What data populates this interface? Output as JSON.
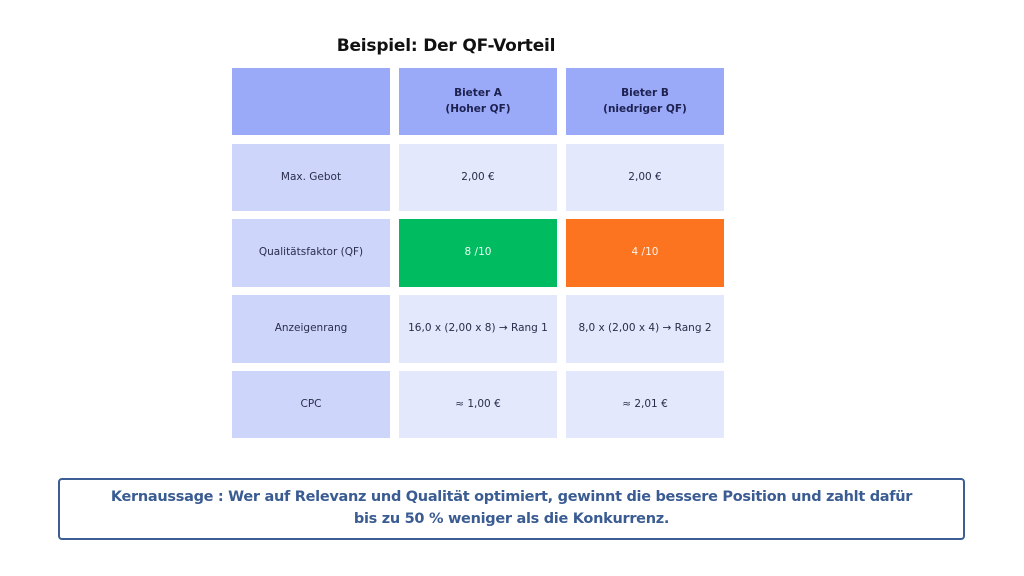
{
  "title": "Beispiel: Der QF-Vorteil",
  "colors": {
    "header_bg": "#9baaf8",
    "label_bg": "#cdd5fb",
    "value_bg": "#e4e8fc",
    "good": "#00bb60",
    "bad": "#fc7320",
    "callout_border": "#3d5e95",
    "callout_text": "#3a5c92"
  },
  "table": {
    "headers": [
      "",
      "Bieter A\n(Hoher QF)",
      "Bieter B\n(niedriger QF)"
    ],
    "header_lines": {
      "a_line1": "Bieter A",
      "a_line2": "(Hoher QF)",
      "b_line1": "Bieter B",
      "b_line2": "(niedriger QF)"
    },
    "rows": [
      {
        "label": "Max. Gebot",
        "a": "2,00 €",
        "b": "2,00 €"
      },
      {
        "label": "Qualitätsfaktor (QF)",
        "a": "8 /10",
        "b": "4 /10"
      },
      {
        "label": "Anzeigenrang",
        "a": "16,0 x (2,00 x 8) → Rang 1",
        "b": "8,0 x (2,00 x 4) → Rang 2"
      },
      {
        "label": "CPC",
        "a": "≈ 1,00 €",
        "b": "≈ 2,01 €"
      }
    ]
  },
  "callout": {
    "line1": "Kernaussage : Wer auf Relevanz und Qualität optimiert, gewinnt die bessere Position und zahlt dafür",
    "line2": "bis zu 50 % weniger als die Konkurrenz."
  }
}
